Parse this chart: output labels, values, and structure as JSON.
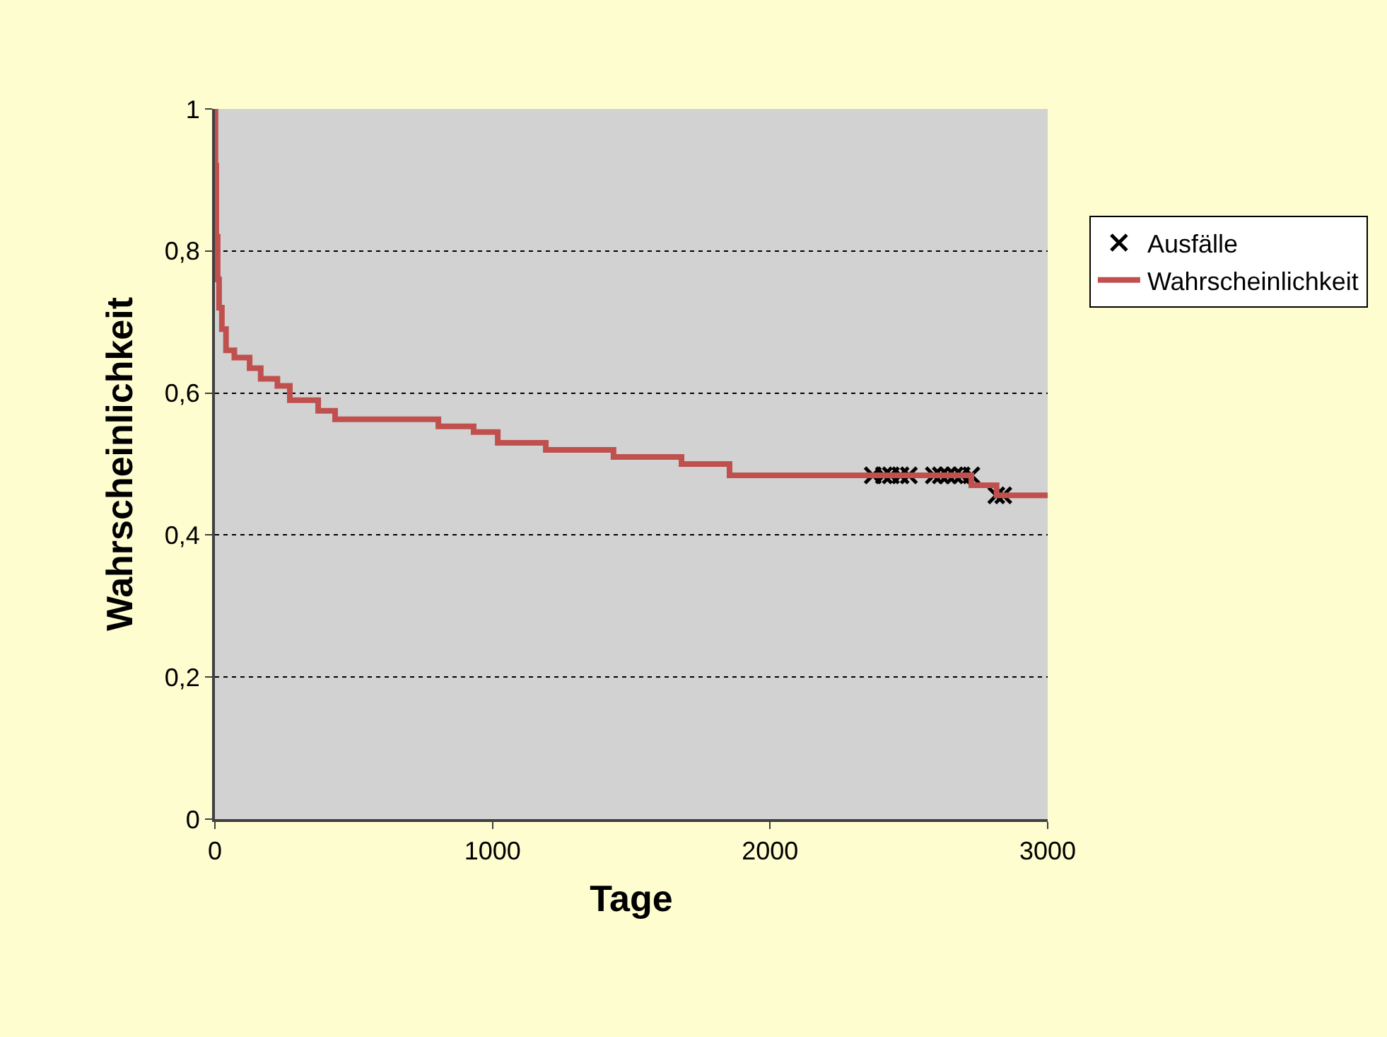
{
  "chart_data": {
    "type": "step",
    "xlabel": "Tage",
    "ylabel": "Wahrscheinlichkeit",
    "xlim": [
      0,
      3000
    ],
    "xticks": [
      0,
      1000,
      2000,
      3000
    ],
    "ylim": [
      0,
      1
    ],
    "yticks": [
      0,
      {
        "value": 0.2,
        "label": "0,2"
      },
      {
        "value": 0.4,
        "label": "0,4"
      },
      {
        "value": 0.6,
        "label": "0,6"
      },
      {
        "value": 0.8,
        "label": "0,8"
      },
      1
    ],
    "grid": "y",
    "legend": "right",
    "series": [
      {
        "name": "Ausfälle",
        "type": "scatter",
        "marker": "cross",
        "color": "#000000",
        "x": [
          2370,
          2410,
          2435,
          2470,
          2500,
          2590,
          2615,
          2640,
          2665,
          2690,
          2725,
          2815,
          2840
        ],
        "values": [
          0.484,
          0.484,
          0.484,
          0.484,
          0.484,
          0.484,
          0.484,
          0.484,
          0.484,
          0.484,
          0.484,
          0.456,
          0.456
        ]
      },
      {
        "name": "Wahrscheinlichkeit",
        "marker": "none",
        "color": "#c0504d",
        "x": [
          0,
          2,
          5,
          10,
          15,
          25,
          40,
          70,
          125,
          165,
          225,
          270,
          372,
          433,
          805,
          932,
          1019,
          1192,
          1436,
          1681,
          1854,
          2725,
          2816,
          3000
        ],
        "values": [
          1,
          0.92,
          0.82,
          0.76,
          0.72,
          0.69,
          0.66,
          0.65,
          0.635,
          0.62,
          0.61,
          0.59,
          0.575,
          0.563,
          0.553,
          0.545,
          0.53,
          0.52,
          0.51,
          0.5,
          0.484,
          0.47,
          0.456,
          0.456
        ]
      }
    ]
  }
}
